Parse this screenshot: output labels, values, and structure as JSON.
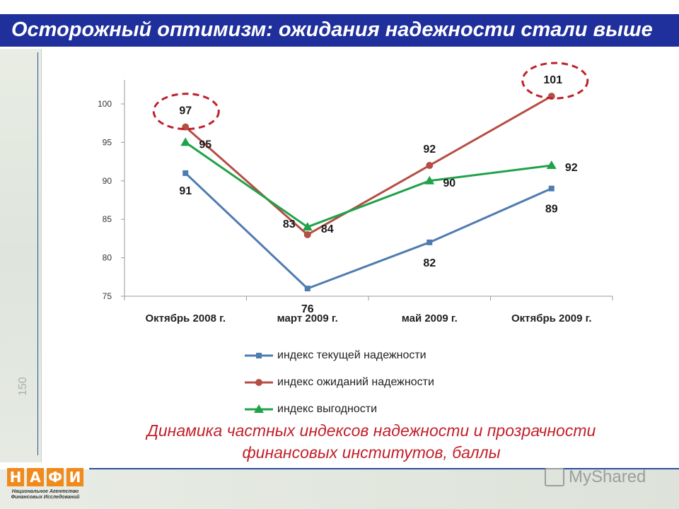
{
  "header": {
    "title": "Осторожный оптимизм: ожидания надежности стали выше"
  },
  "chart_data": {
    "type": "line",
    "categories": [
      "Октябрь 2008 г.",
      "март 2009 г.",
      "май 2009 г.",
      "Октябрь 2009 г."
    ],
    "ylim": [
      75,
      100
    ],
    "yticks": [
      75,
      80,
      85,
      90,
      95,
      100
    ],
    "grid": false,
    "legend_position": "bottom",
    "series": [
      {
        "name": "индекс текущей надежности",
        "values": [
          91,
          76,
          82,
          89
        ],
        "labels": [
          "91",
          "76",
          "82",
          "89"
        ],
        "color": "#4f7cb0",
        "marker": "square"
      },
      {
        "name": "индекс ожиданий надежности",
        "values": [
          97,
          83,
          92,
          101
        ],
        "labels": [
          "97",
          "83",
          "92",
          "101"
        ],
        "color": "#b54e45",
        "marker": "circle"
      },
      {
        "name": "индекс выгодности",
        "values": [
          95,
          84,
          90,
          92
        ],
        "labels": [
          "95",
          "84",
          "90",
          "92"
        ],
        "color": "#1fa24a",
        "marker": "triangle"
      }
    ],
    "highlight_color": "#c0202a"
  },
  "caption": {
    "line1": "Динамика частных индексов надежности и прозрачности",
    "line2": "финансовых институтов, баллы"
  },
  "logo": {
    "letters": [
      "Н",
      "А",
      "Ф",
      "И"
    ],
    "subtitle_line1": "Национальное Агентство",
    "subtitle_line2": "Финансовых Исследований",
    "color": "#f08a1c"
  },
  "watermark": {
    "text": "MyShared"
  },
  "side_number": "150"
}
